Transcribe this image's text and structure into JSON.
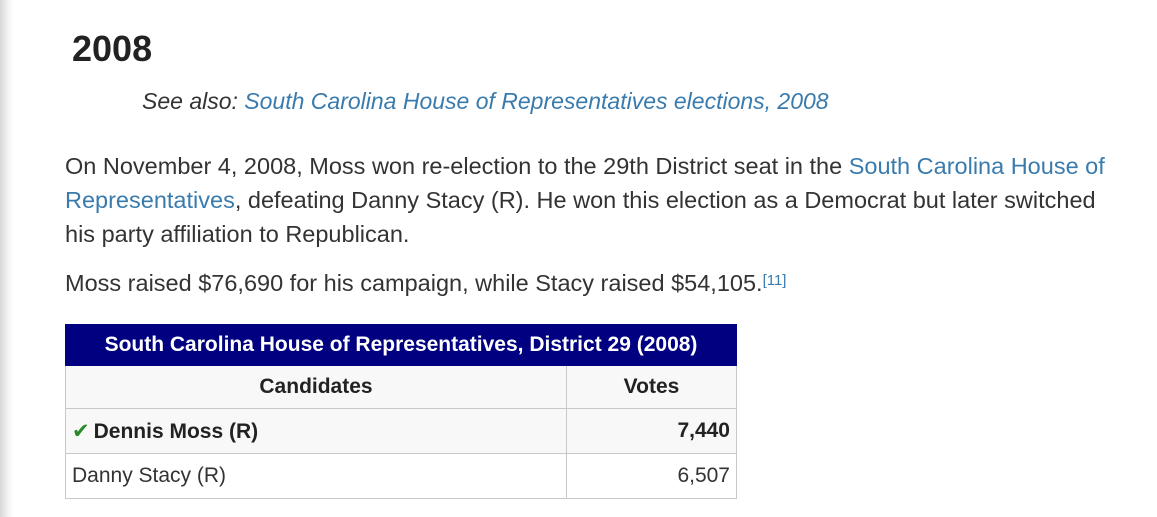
{
  "heading": "2008",
  "see_also": {
    "prefix": "See also:",
    "link": "South Carolina House of Representatives elections, 2008"
  },
  "paragraph1": {
    "text_a": "On November 4, 2008, Moss won re-election to the 29th District seat in the ",
    "link": "South Carolina House of Representatives",
    "text_b": ", defeating Danny Stacy (R). He won this election as a Democrat but later switched his party affiliation to Republican."
  },
  "paragraph2": {
    "text": "Moss raised $76,690 for his campaign, while Stacy raised $54,105.",
    "ref": "[11]"
  },
  "results_table": {
    "caption": "South Carolina House of Representatives, District 29 (2008)",
    "headers": [
      "Candidates",
      "Votes"
    ],
    "rows": [
      {
        "candidate": "Dennis Moss (R)",
        "votes": "7,440",
        "winner": true
      },
      {
        "candidate": "Danny Stacy (R)",
        "votes": "6,507",
        "winner": false
      }
    ]
  },
  "colors": {
    "link": "#3a7bad",
    "table_header_bg": "#000080",
    "winner_check": "#2a8a2a"
  },
  "icons": [
    "checkmark-icon"
  ]
}
